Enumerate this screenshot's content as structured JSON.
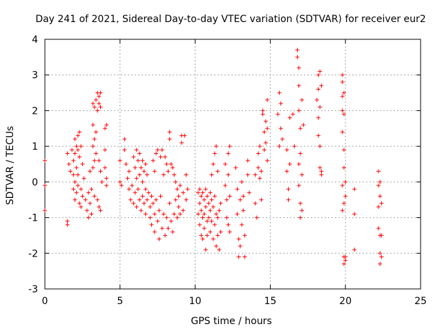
{
  "chart_data": {
    "type": "scatter",
    "title": "Day 241 of 2021, Sidereal Day-to-day VTEC variation (SDTVAR) for receiver eur2",
    "xlabel": "GPS time / hours",
    "ylabel": "SDTVAR / TECUs",
    "xlim": [
      0,
      25
    ],
    "ylim": [
      -3,
      4
    ],
    "xticks": [
      0,
      5,
      10,
      15,
      20,
      25
    ],
    "yticks": [
      -3,
      -2,
      -1,
      0,
      1,
      2,
      3,
      4
    ],
    "x_tick_labels": [
      "0",
      "5",
      "10",
      "15",
      "20",
      "25"
    ],
    "y_tick_labels": [
      "-3",
      "-2",
      "-1",
      "0",
      "1",
      "2",
      "3",
      "4"
    ],
    "grid": true,
    "marker": "+",
    "color": "#ff0000",
    "series": [
      {
        "name": "SDTVAR",
        "points": [
          [
            0.0,
            0.6
          ],
          [
            0.0,
            -0.1
          ],
          [
            0.0,
            -0.8
          ],
          [
            1.5,
            -1.1
          ],
          [
            1.5,
            -1.2
          ],
          [
            1.5,
            0.8
          ],
          [
            1.6,
            0.5
          ],
          [
            1.7,
            0.3
          ],
          [
            1.8,
            0.9
          ],
          [
            1.9,
            0.6
          ],
          [
            1.9,
            0.2
          ],
          [
            1.9,
            -0.2
          ],
          [
            2.0,
            1.2
          ],
          [
            2.0,
            0.8
          ],
          [
            2.0,
            0.0
          ],
          [
            2.0,
            -0.5
          ],
          [
            2.1,
            1.0
          ],
          [
            2.1,
            0.4
          ],
          [
            2.1,
            -0.3
          ],
          [
            2.2,
            1.3
          ],
          [
            2.2,
            0.9
          ],
          [
            2.2,
            0.2
          ],
          [
            2.2,
            -0.1
          ],
          [
            2.3,
            1.4
          ],
          [
            2.3,
            0.7
          ],
          [
            2.3,
            -0.6
          ],
          [
            2.4,
            1.0
          ],
          [
            2.4,
            -0.2
          ],
          [
            2.4,
            -0.7
          ],
          [
            2.5,
            0.5
          ],
          [
            2.5,
            -0.4
          ],
          [
            2.6,
            0.1
          ],
          [
            2.7,
            -0.5
          ],
          [
            2.8,
            -0.8
          ],
          [
            2.9,
            -0.3
          ],
          [
            2.9,
            -1.0
          ],
          [
            3.0,
            0.3
          ],
          [
            3.0,
            -0.6
          ],
          [
            3.1,
            -0.2
          ],
          [
            3.1,
            -0.9
          ],
          [
            3.2,
            2.2
          ],
          [
            3.2,
            1.6
          ],
          [
            3.2,
            1.0
          ],
          [
            3.2,
            0.4
          ],
          [
            3.3,
            2.1
          ],
          [
            3.3,
            1.2
          ],
          [
            3.3,
            0.6
          ],
          [
            3.3,
            -0.4
          ],
          [
            3.4,
            2.3
          ],
          [
            3.4,
            1.4
          ],
          [
            3.4,
            0.8
          ],
          [
            3.5,
            2.5
          ],
          [
            3.5,
            2.0
          ],
          [
            3.5,
            -0.5
          ],
          [
            3.6,
            2.4
          ],
          [
            3.6,
            2.2
          ],
          [
            3.6,
            0.6
          ],
          [
            3.6,
            -0.7
          ],
          [
            3.7,
            2.5
          ],
          [
            3.7,
            2.1
          ],
          [
            3.7,
            0.3
          ],
          [
            3.7,
            -0.8
          ],
          [
            3.8,
            0.0
          ],
          [
            4.0,
            1.5
          ],
          [
            4.1,
            1.6
          ],
          [
            4.0,
            0.9
          ],
          [
            4.0,
            0.4
          ],
          [
            4.1,
            0.1
          ],
          [
            4.1,
            -0.1
          ],
          [
            5.0,
            0.6
          ],
          [
            5.0,
            0.0
          ],
          [
            5.1,
            -0.1
          ],
          [
            5.3,
            1.2
          ],
          [
            5.3,
            0.9
          ],
          [
            5.4,
            0.5
          ],
          [
            5.5,
            0.1
          ],
          [
            5.6,
            0.3
          ],
          [
            5.6,
            -0.2
          ],
          [
            5.7,
            -0.5
          ],
          [
            5.8,
            -0.1
          ],
          [
            5.9,
            0.7
          ],
          [
            5.9,
            -0.6
          ],
          [
            6.0,
            0.4
          ],
          [
            6.0,
            -0.3
          ],
          [
            6.1,
            0.9
          ],
          [
            6.1,
            0.1
          ],
          [
            6.1,
            -0.7
          ],
          [
            6.2,
            0.6
          ],
          [
            6.2,
            -0.2
          ],
          [
            6.3,
            0.8
          ],
          [
            6.3,
            0.2
          ],
          [
            6.3,
            -0.5
          ],
          [
            6.4,
            0.4
          ],
          [
            6.4,
            -0.8
          ],
          [
            6.5,
            0.6
          ],
          [
            6.5,
            0.0
          ],
          [
            6.5,
            -0.4
          ],
          [
            6.6,
            0.3
          ],
          [
            6.6,
            -0.6
          ],
          [
            6.7,
            0.5
          ],
          [
            6.7,
            -0.2
          ],
          [
            6.7,
            -0.9
          ],
          [
            6.8,
            0.2
          ],
          [
            6.8,
            -0.5
          ],
          [
            6.9,
            -0.3
          ],
          [
            7.0,
            -0.7
          ],
          [
            7.0,
            -1.0
          ],
          [
            7.1,
            -0.4
          ],
          [
            7.1,
            -1.2
          ],
          [
            7.2,
            0.6
          ],
          [
            7.2,
            -0.6
          ],
          [
            7.3,
            0.3
          ],
          [
            7.3,
            -0.9
          ],
          [
            7.3,
            -1.4
          ],
          [
            7.4,
            0.8
          ],
          [
            7.4,
            -0.5
          ],
          [
            7.5,
            0.9
          ],
          [
            7.5,
            -1.1
          ],
          [
            7.6,
            -0.8
          ],
          [
            7.6,
            -1.6
          ],
          [
            7.7,
            0.7
          ],
          [
            7.7,
            -0.4
          ],
          [
            7.8,
            0.9
          ],
          [
            7.8,
            -1.3
          ],
          [
            7.9,
            0.2
          ],
          [
            7.9,
            -0.9
          ],
          [
            8.0,
            0.7
          ],
          [
            8.0,
            -1.5
          ],
          [
            8.1,
            0.5
          ],
          [
            8.1,
            -1.0
          ],
          [
            8.2,
            0.3
          ],
          [
            8.2,
            -1.3
          ],
          [
            8.3,
            1.4
          ],
          [
            8.3,
            1.2
          ],
          [
            8.3,
            -0.6
          ],
          [
            8.4,
            0.5
          ],
          [
            8.4,
            -1.1
          ],
          [
            8.5,
            0.4
          ],
          [
            8.5,
            -1.4
          ],
          [
            8.6,
            0.2
          ],
          [
            8.6,
            -0.9
          ],
          [
            8.7,
            0.0
          ],
          [
            8.7,
            -0.5
          ],
          [
            8.8,
            -0.2
          ],
          [
            8.8,
            -1.0
          ],
          [
            8.9,
            -0.4
          ],
          [
            8.9,
            -0.7
          ],
          [
            9.0,
            -0.1
          ],
          [
            9.0,
            -0.9
          ],
          [
            9.1,
            1.3
          ],
          [
            9.1,
            1.1
          ],
          [
            9.2,
            -0.3
          ],
          [
            9.2,
            -0.8
          ],
          [
            9.3,
            1.3
          ],
          [
            9.4,
            0.2
          ],
          [
            9.4,
            -0.5
          ],
          [
            9.5,
            -0.2
          ],
          [
            10.2,
            -0.3
          ],
          [
            10.2,
            -0.9
          ],
          [
            10.3,
            -0.2
          ],
          [
            10.3,
            -0.6
          ],
          [
            10.3,
            -1.2
          ],
          [
            10.4,
            -0.4
          ],
          [
            10.4,
            -0.8
          ],
          [
            10.4,
            -1.5
          ],
          [
            10.5,
            -0.3
          ],
          [
            10.5,
            -1.0
          ],
          [
            10.5,
            -1.6
          ],
          [
            10.6,
            -0.5
          ],
          [
            10.6,
            -0.9
          ],
          [
            10.6,
            -1.3
          ],
          [
            10.7,
            -0.2
          ],
          [
            10.7,
            -0.7
          ],
          [
            10.7,
            -1.9
          ],
          [
            10.8,
            -0.4
          ],
          [
            10.8,
            -1.1
          ],
          [
            10.8,
            -1.5
          ],
          [
            10.9,
            -0.6
          ],
          [
            10.9,
            -1.0
          ],
          [
            11.0,
            -0.3
          ],
          [
            11.0,
            -0.8
          ],
          [
            11.0,
            -1.4
          ],
          [
            11.1,
            0.2
          ],
          [
            11.1,
            -0.5
          ],
          [
            11.1,
            -1.1
          ],
          [
            11.2,
            0.5
          ],
          [
            11.2,
            -0.7
          ],
          [
            11.2,
            -1.6
          ],
          [
            11.3,
            0.8
          ],
          [
            11.3,
            -0.4
          ],
          [
            11.3,
            -1.2
          ],
          [
            11.4,
            1.0
          ],
          [
            11.4,
            -0.9
          ],
          [
            11.4,
            -1.8
          ],
          [
            11.5,
            0.3
          ],
          [
            11.5,
            -1.0
          ],
          [
            11.5,
            -1.5
          ],
          [
            11.6,
            -0.8
          ],
          [
            11.6,
            -1.9
          ],
          [
            11.7,
            -0.6
          ],
          [
            11.7,
            -1.4
          ],
          [
            12.0,
            0.5
          ],
          [
            12.0,
            -0.1
          ],
          [
            12.1,
            -0.5
          ],
          [
            12.1,
            -1.0
          ],
          [
            12.2,
            0.8
          ],
          [
            12.2,
            0.2
          ],
          [
            12.2,
            -1.2
          ],
          [
            12.3,
            1.0
          ],
          [
            12.3,
            -0.4
          ],
          [
            12.3,
            -1.4
          ],
          [
            12.7,
            0.4
          ],
          [
            12.8,
            -0.2
          ],
          [
            12.8,
            -0.9
          ],
          [
            12.9,
            -1.6
          ],
          [
            12.9,
            -2.1
          ],
          [
            13.0,
            -1.8
          ],
          [
            13.0,
            -0.5
          ],
          [
            13.1,
            0.0
          ],
          [
            13.1,
            -1.2
          ],
          [
            13.2,
            -0.4
          ],
          [
            13.2,
            -0.8
          ],
          [
            13.3,
            -2.1
          ],
          [
            13.3,
            -1.5
          ],
          [
            13.5,
            0.6
          ],
          [
            13.5,
            0.2
          ],
          [
            13.6,
            -0.3
          ],
          [
            14.0,
            0.2
          ],
          [
            14.0,
            -0.6
          ],
          [
            14.1,
            -1.0
          ],
          [
            14.2,
            0.8
          ],
          [
            14.2,
            0.4
          ],
          [
            14.3,
            1.0
          ],
          [
            14.3,
            0.1
          ],
          [
            14.4,
            0.3
          ],
          [
            14.4,
            -0.5
          ],
          [
            14.5,
            2.0
          ],
          [
            14.5,
            1.9
          ],
          [
            14.6,
            1.4
          ],
          [
            14.6,
            0.9
          ],
          [
            14.7,
            1.7
          ],
          [
            14.7,
            1.1
          ],
          [
            14.8,
            2.3
          ],
          [
            14.8,
            1.5
          ],
          [
            14.8,
            0.6
          ],
          [
            15.5,
            1.9
          ],
          [
            15.6,
            2.5
          ],
          [
            15.6,
            1.0
          ],
          [
            15.7,
            2.2
          ],
          [
            15.7,
            1.5
          ],
          [
            15.8,
            1.2
          ],
          [
            16.1,
            0.9
          ],
          [
            16.1,
            0.3
          ],
          [
            16.2,
            -0.2
          ],
          [
            16.2,
            -0.5
          ],
          [
            16.3,
            0.5
          ],
          [
            16.3,
            1.8
          ],
          [
            16.5,
            1.9
          ],
          [
            16.6,
            1.0
          ],
          [
            16.8,
            3.7
          ],
          [
            16.8,
            3.5
          ],
          [
            16.9,
            3.2
          ],
          [
            16.9,
            2.7
          ],
          [
            16.9,
            2.0
          ],
          [
            16.9,
            0.5
          ],
          [
            16.9,
            -0.1
          ],
          [
            17.0,
            1.5
          ],
          [
            17.0,
            0.8
          ],
          [
            17.0,
            -0.6
          ],
          [
            17.0,
            -1.0
          ],
          [
            17.1,
            0.2
          ],
          [
            17.1,
            -0.8
          ],
          [
            17.1,
            2.3
          ],
          [
            17.2,
            1.6
          ],
          [
            18.1,
            2.3
          ],
          [
            18.2,
            3.0
          ],
          [
            18.2,
            2.6
          ],
          [
            18.2,
            1.8
          ],
          [
            18.2,
            1.3
          ],
          [
            18.3,
            3.1
          ],
          [
            18.3,
            2.1
          ],
          [
            18.3,
            1.0
          ],
          [
            18.3,
            0.4
          ],
          [
            18.4,
            2.7
          ],
          [
            18.4,
            0.3
          ],
          [
            18.4,
            0.2
          ],
          [
            19.8,
            3.0
          ],
          [
            19.8,
            2.8
          ],
          [
            19.8,
            2.4
          ],
          [
            19.8,
            2.0
          ],
          [
            19.9,
            2.5
          ],
          [
            19.9,
            1.9
          ],
          [
            19.8,
            1.4
          ],
          [
            19.9,
            0.9
          ],
          [
            19.9,
            0.4
          ],
          [
            19.8,
            -0.1
          ],
          [
            19.9,
            -0.6
          ],
          [
            19.8,
            -0.8
          ],
          [
            19.9,
            -2.1
          ],
          [
            19.9,
            -2.3
          ],
          [
            20.0,
            -2.1
          ],
          [
            20.0,
            -2.2
          ],
          [
            20.0,
            -0.4
          ],
          [
            20.0,
            0.0
          ],
          [
            20.6,
            -0.2
          ],
          [
            20.6,
            -0.9
          ],
          [
            20.6,
            -1.9
          ],
          [
            22.2,
            0.3
          ],
          [
            22.2,
            -0.1
          ],
          [
            22.2,
            -0.7
          ],
          [
            22.2,
            -1.3
          ],
          [
            22.3,
            0.0
          ],
          [
            22.3,
            -0.4
          ],
          [
            22.3,
            -1.5
          ],
          [
            22.3,
            -2.0
          ],
          [
            22.3,
            -2.3
          ],
          [
            22.4,
            -0.6
          ],
          [
            22.4,
            -1.5
          ],
          [
            22.4,
            -2.1
          ]
        ]
      }
    ]
  }
}
